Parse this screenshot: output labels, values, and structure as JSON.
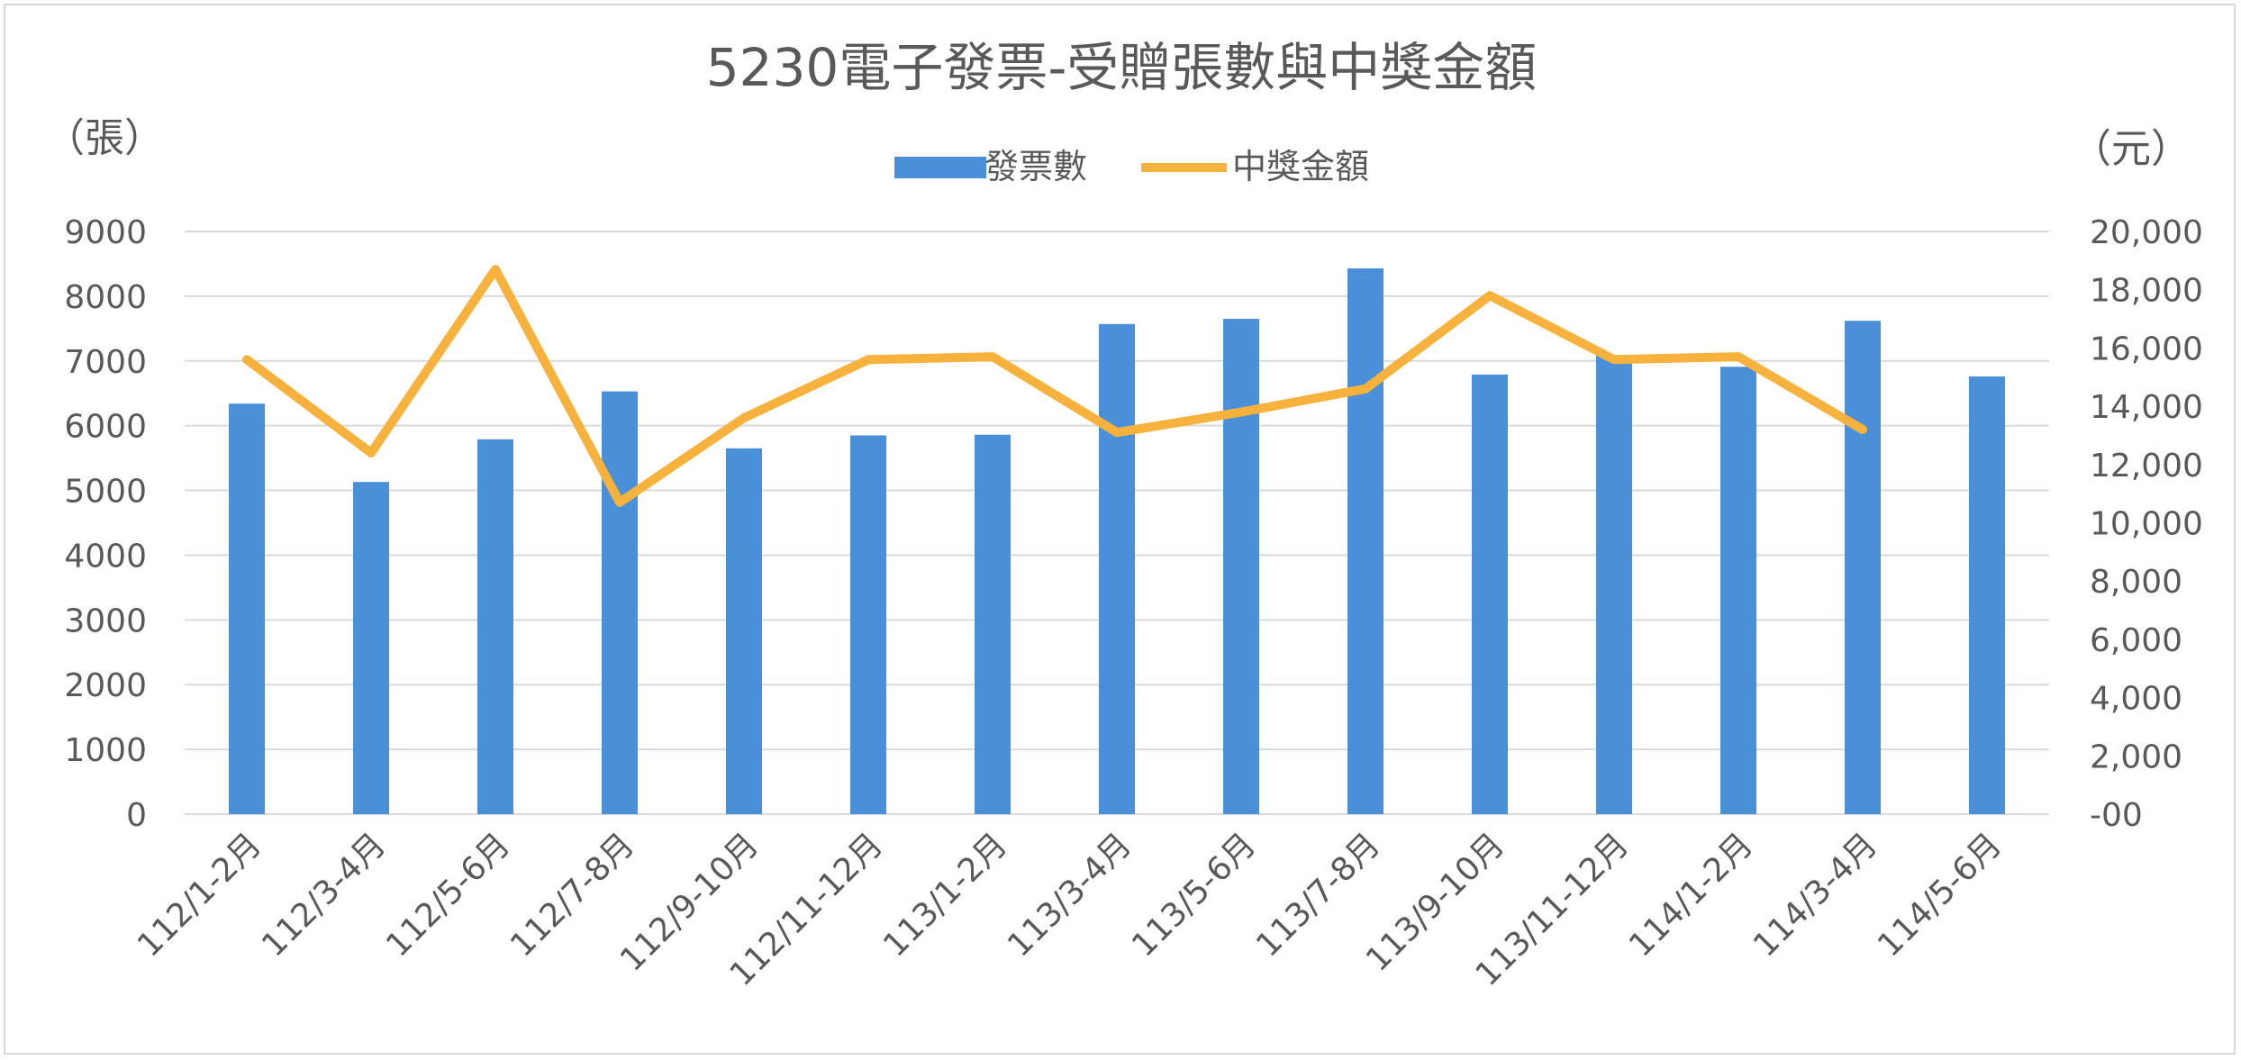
{
  "chart_data": {
    "type": "bar",
    "title": "5230電子發票-受贈張數與中獎金額",
    "y_left_unit": "（張）",
    "y_right_unit": "（元）",
    "categories": [
      "112/1-2月",
      "112/3-4月",
      "112/5-6月",
      "112/7-8月",
      "112/9-10月",
      "112/11-12月",
      "113/1-2月",
      "113/3-4月",
      "113/5-6月",
      "113/7-8月",
      "113/9-10月",
      "113/11-12月",
      "114/1-2月",
      "114/3-4月",
      "114/5-6月"
    ],
    "series": [
      {
        "name": "發票數",
        "type": "bar",
        "axis": "left",
        "color": "#4a90d9",
        "values": [
          6340,
          5130,
          5790,
          6530,
          5650,
          5850,
          5860,
          7570,
          7650,
          8430,
          6790,
          7090,
          6910,
          7620,
          6760
        ]
      },
      {
        "name": "中獎金額",
        "type": "line",
        "axis": "right",
        "color": "#f7b13d",
        "values": [
          15600,
          12400,
          18700,
          10700,
          13600,
          15600,
          15700,
          13100,
          13800,
          14600,
          17800,
          15600,
          15700,
          13200,
          null
        ]
      }
    ],
    "y_left": {
      "min": 0,
      "max": 9000,
      "step": 1000,
      "tick_labels": [
        "0",
        "1000",
        "2000",
        "3000",
        "4000",
        "5000",
        "6000",
        "7000",
        "8000",
        "9000"
      ]
    },
    "y_right": {
      "min": 0,
      "max": 20000,
      "step": 2000,
      "tick_labels": [
        "-00",
        "2,000",
        "4,000",
        "6,000",
        "8,000",
        "10,000",
        "12,000",
        "14,000",
        "16,000",
        "18,000",
        "20,000"
      ]
    },
    "grid": true,
    "legend_position": "top-center",
    "colors": {
      "gridline": "#d9d9d9",
      "text": "#595959",
      "title": "#595959"
    }
  }
}
